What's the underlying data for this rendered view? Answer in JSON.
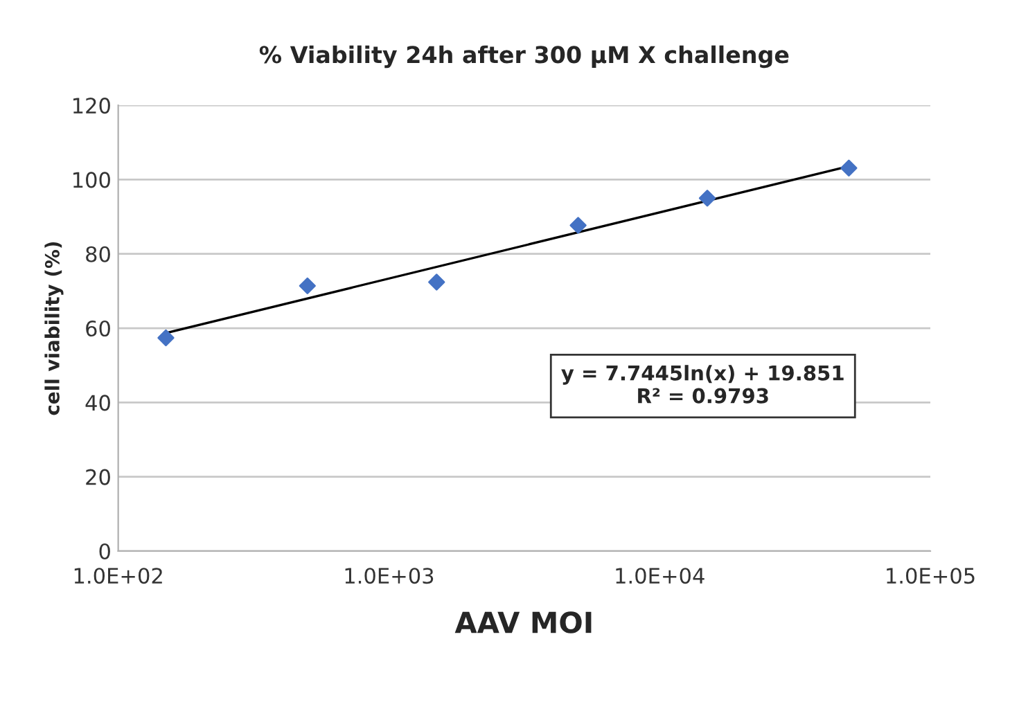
{
  "chart_data": {
    "type": "scatter",
    "title": "% Viability 24h after 300 µM X challenge",
    "xlabel": "AAV MOI",
    "ylabel": "cell viability (%)",
    "series": [
      {
        "color": "#4472c4",
        "marker": "diamond",
        "x": [
          150,
          500,
          1500,
          5000,
          15000,
          50000
        ],
        "values": [
          57.4,
          71.4,
          72.4,
          87.7,
          95.0,
          103.1
        ]
      },
      {
        "type": "line",
        "color": "#000000",
        "marker": "none",
        "line_style": "solid",
        "x": [
          150,
          50000
        ],
        "values": [
          58.7,
          103.6
        ]
      }
    ],
    "log": "x",
    "xlim": [
      100,
      100000
    ],
    "xticks": [
      {
        "value": 100,
        "label": "1.0E+02"
      },
      {
        "value": 1000,
        "label": "1.0E+03"
      },
      {
        "value": 10000,
        "label": "1.0E+04"
      },
      {
        "value": 100000,
        "label": "1.0E+05"
      }
    ],
    "ylim": [
      0,
      120
    ],
    "yticks": [
      0,
      20,
      40,
      60,
      80,
      100,
      120
    ],
    "grid": "y",
    "annotations": [
      "y = 7.7445ln(x) + 19.851\nR² = 0.9793"
    ]
  }
}
